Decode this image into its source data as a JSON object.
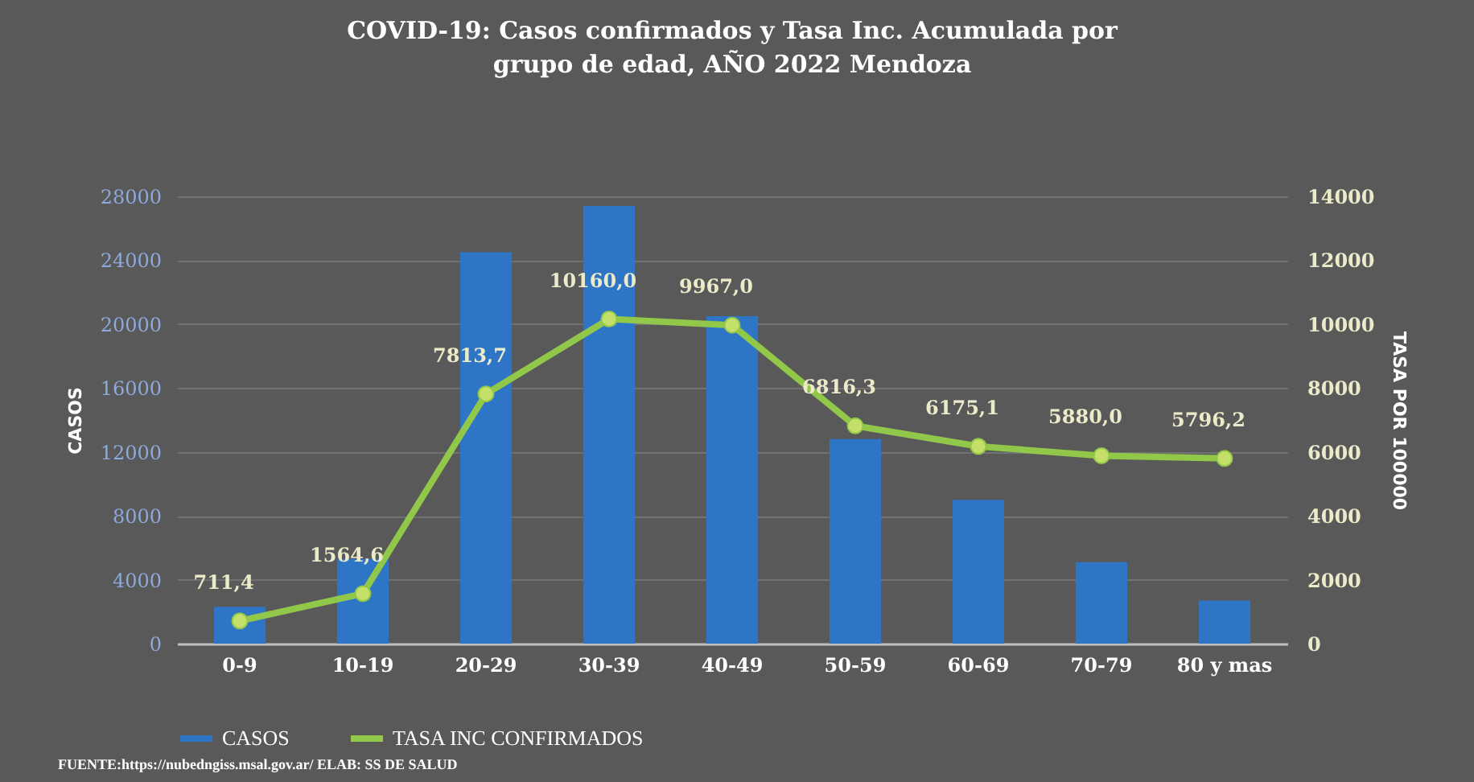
{
  "chart_data": {
    "type": "bar",
    "title": [
      "COVID-19: Casos confirmados y  Tasa Inc. Acumulada por",
      "grupo de edad, AÑO 2022 Mendoza"
    ],
    "ylabel": "CASOS",
    "y2label": "TASA POR 100000",
    "categories": [
      "0-9",
      "10-19",
      "20-29",
      "30-39",
      "40-49",
      "50-59",
      "60-69",
      "70-79",
      "80 y mas"
    ],
    "series": [
      {
        "name": "CASOS",
        "color": "#2e75c6",
        "values": [
          2300,
          5300,
          24500,
          27400,
          20500,
          12800,
          9000,
          5100,
          2700
        ]
      },
      {
        "name": "TASA INC CONFIRMADOS",
        "type": "line",
        "axis": "y2",
        "color": "#92c84a",
        "values": [
          711.4,
          1564.6,
          7813.7,
          10160.0,
          9967.0,
          6816.3,
          6175.1,
          5880.0,
          5796.2
        ],
        "value_labels": [
          "711,4",
          "1564,6",
          "7813,7",
          "10160,0",
          "9967,0",
          "6816,3",
          "6175,1",
          "5880,0",
          "5796,2"
        ]
      }
    ],
    "ylim": [
      0,
      28000
    ],
    "yticks": [
      0,
      4000,
      8000,
      12000,
      16000,
      20000,
      24000,
      28000
    ],
    "y2lim": [
      0,
      14000
    ],
    "y2ticks": [
      0,
      2000,
      4000,
      6000,
      8000,
      10000,
      12000,
      14000
    ],
    "grid": "y",
    "legend": "bottom",
    "marker": "circle",
    "line_style": "solid",
    "annotations": [
      "FUENTE:https://nubedngiss.msal.gov.ar/ ELAB: SS DE SALUD"
    ]
  }
}
